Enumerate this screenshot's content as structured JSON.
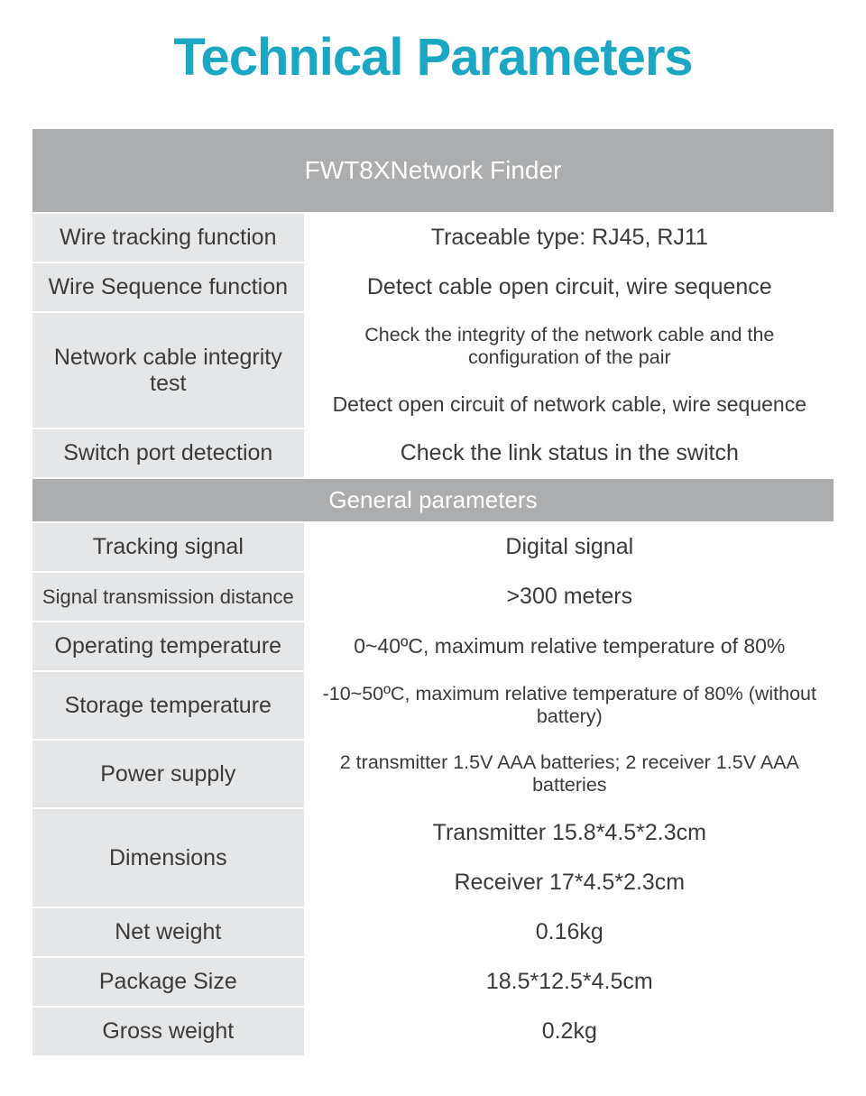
{
  "title": "Technical Parameters",
  "title_color": "#1ba7c4",
  "header": "FWT8XNetwork Finder",
  "header_bg": "#acadaf",
  "header_text_color": "#ffffff",
  "label_bg": "#e5e6e7",
  "value_bg": "#ffffff",
  "text_color": "#3a3a3a",
  "section1": {
    "rows": [
      {
        "label": "Wire tracking function",
        "value": "Traceable type: RJ45, RJ11"
      },
      {
        "label": "Wire Sequence function",
        "value": "Detect cable open circuit, wire sequence"
      }
    ],
    "merged_row": {
      "label": "Network cable integrity test",
      "values": [
        "Check the integrity of the network cable and the configuration of the pair",
        "Detect open circuit of network cable, wire sequence"
      ]
    },
    "last_row": {
      "label": "Switch port detection",
      "value": "Check the link status in the switch"
    }
  },
  "subheader": "General parameters",
  "section2": {
    "rows": [
      {
        "label": "Tracking signal",
        "value": "Digital signal"
      },
      {
        "label": "Signal transmission distance",
        "value": ">300 meters",
        "label_small": true
      },
      {
        "label": "Operating temperature",
        "value": "0~40ºC, maximum relative temperature of 80%",
        "value_med": true
      },
      {
        "label": "Storage temperature",
        "value": "-10~50ºC, maximum relative temperature of 80% (without battery)",
        "value_small": true
      },
      {
        "label": "Power supply",
        "value": "2 transmitter 1.5V AAA batteries; 2 receiver 1.5V AAA batteries",
        "value_small": true
      }
    ],
    "merged_row": {
      "label": "Dimensions",
      "values": [
        "Transmitter 15.8*4.5*2.3cm",
        "Receiver 17*4.5*2.3cm"
      ]
    },
    "last_rows": [
      {
        "label": "Net weight",
        "value": "0.16kg"
      },
      {
        "label": "Package Size",
        "value": "18.5*12.5*4.5cm"
      },
      {
        "label": "Gross weight",
        "value": "0.2kg"
      }
    ]
  }
}
